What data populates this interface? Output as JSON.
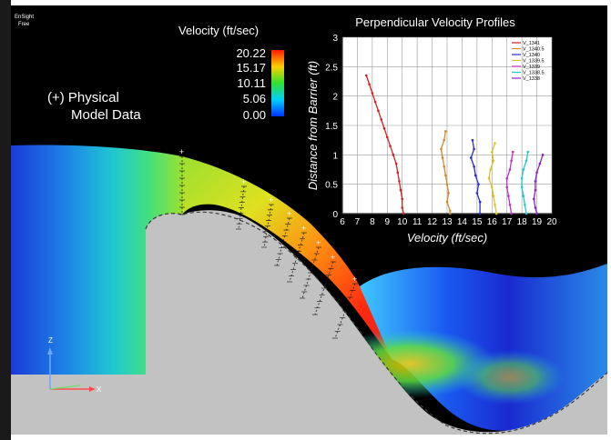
{
  "app": {
    "logo_line1": "EnSight",
    "logo_line2": "Free"
  },
  "colorbar": {
    "title": "Velocity (ft/sec)",
    "ticks": [
      "20.22",
      "15.17",
      "10.11",
      "5.06",
      "0.00"
    ]
  },
  "annotation": {
    "line1": "(+) Physical",
    "line2": "Model Data"
  },
  "axes_triad": {
    "z": "Z",
    "x": "X"
  },
  "colors": {
    "background": "#000000",
    "ground": "#c2c2c2",
    "panel": "#ffffff"
  },
  "chart_data": {
    "type": "line",
    "title": "Perpendicular Velocity Profiles",
    "xlabel": "Velocity (ft/sec)",
    "ylabel": "Distance from Barrier (ft)",
    "xlim": [
      6,
      20
    ],
    "ylim": [
      0,
      3
    ],
    "xticks": [
      "6",
      "7",
      "8",
      "9",
      "10",
      "11",
      "12",
      "13",
      "14",
      "15",
      "16",
      "17",
      "18",
      "19",
      "20"
    ],
    "yticks": [
      "0",
      "0.5",
      "1",
      "1.5",
      "2",
      "2.5",
      "3"
    ],
    "grid": true,
    "legend_position": "top-right",
    "series": [
      {
        "name": "V_1341",
        "color": "#d62020",
        "points": [
          [
            7.6,
            2.35
          ],
          [
            7.8,
            2.2
          ],
          [
            8.0,
            2.05
          ],
          [
            8.2,
            1.9
          ],
          [
            8.4,
            1.75
          ],
          [
            8.6,
            1.6
          ],
          [
            8.8,
            1.45
          ],
          [
            9.0,
            1.3
          ],
          [
            9.2,
            1.15
          ],
          [
            9.4,
            1.0
          ],
          [
            9.6,
            0.85
          ],
          [
            9.7,
            0.7
          ],
          [
            9.8,
            0.55
          ],
          [
            9.9,
            0.4
          ],
          [
            10.0,
            0.25
          ],
          [
            10.0,
            0.1
          ],
          [
            10.1,
            0.0
          ]
        ]
      },
      {
        "name": "V_1340.5",
        "color": "#d08a2a",
        "points": [
          [
            12.9,
            1.4
          ],
          [
            12.8,
            1.25
          ],
          [
            12.6,
            1.1
          ],
          [
            12.7,
            0.95
          ],
          [
            12.8,
            0.8
          ],
          [
            12.9,
            0.65
          ],
          [
            13.0,
            0.5
          ],
          [
            13.1,
            0.35
          ],
          [
            13.0,
            0.2
          ],
          [
            13.2,
            0.05
          ],
          [
            13.2,
            0.0
          ]
        ]
      },
      {
        "name": "V_1340",
        "color": "#2a2ad8",
        "points": [
          [
            14.7,
            1.25
          ],
          [
            14.8,
            1.1
          ],
          [
            14.6,
            0.95
          ],
          [
            14.8,
            0.8
          ],
          [
            14.9,
            0.65
          ],
          [
            15.1,
            0.5
          ],
          [
            15.0,
            0.35
          ],
          [
            15.2,
            0.2
          ],
          [
            15.2,
            0.0
          ]
        ]
      },
      {
        "name": "V_1339.5",
        "color": "#e0c020",
        "points": [
          [
            16.2,
            1.2
          ],
          [
            16.0,
            1.05
          ],
          [
            16.1,
            0.9
          ],
          [
            15.9,
            0.75
          ],
          [
            15.8,
            0.6
          ],
          [
            16.0,
            0.45
          ],
          [
            16.1,
            0.3
          ],
          [
            16.2,
            0.15
          ],
          [
            16.3,
            0.0
          ]
        ]
      },
      {
        "name": "V_1339",
        "color": "#c030c0",
        "points": [
          [
            17.4,
            1.05
          ],
          [
            17.3,
            0.9
          ],
          [
            17.2,
            0.75
          ],
          [
            17.0,
            0.6
          ],
          [
            17.0,
            0.45
          ],
          [
            17.1,
            0.3
          ],
          [
            17.2,
            0.15
          ],
          [
            17.3,
            0.0
          ]
        ]
      },
      {
        "name": "V_1338.5",
        "color": "#20c8c8",
        "points": [
          [
            18.4,
            1.05
          ],
          [
            18.3,
            0.9
          ],
          [
            18.1,
            0.75
          ],
          [
            18.0,
            0.6
          ],
          [
            18.0,
            0.45
          ],
          [
            18.1,
            0.3
          ],
          [
            18.2,
            0.15
          ],
          [
            18.3,
            0.0
          ]
        ]
      },
      {
        "name": "V_1338",
        "color": "#8a20d0",
        "points": [
          [
            19.4,
            1.0
          ],
          [
            19.2,
            0.85
          ],
          [
            19.0,
            0.7
          ],
          [
            18.9,
            0.55
          ],
          [
            18.9,
            0.4
          ],
          [
            18.8,
            0.25
          ],
          [
            18.9,
            0.1
          ],
          [
            19.0,
            0.0
          ]
        ]
      }
    ]
  }
}
